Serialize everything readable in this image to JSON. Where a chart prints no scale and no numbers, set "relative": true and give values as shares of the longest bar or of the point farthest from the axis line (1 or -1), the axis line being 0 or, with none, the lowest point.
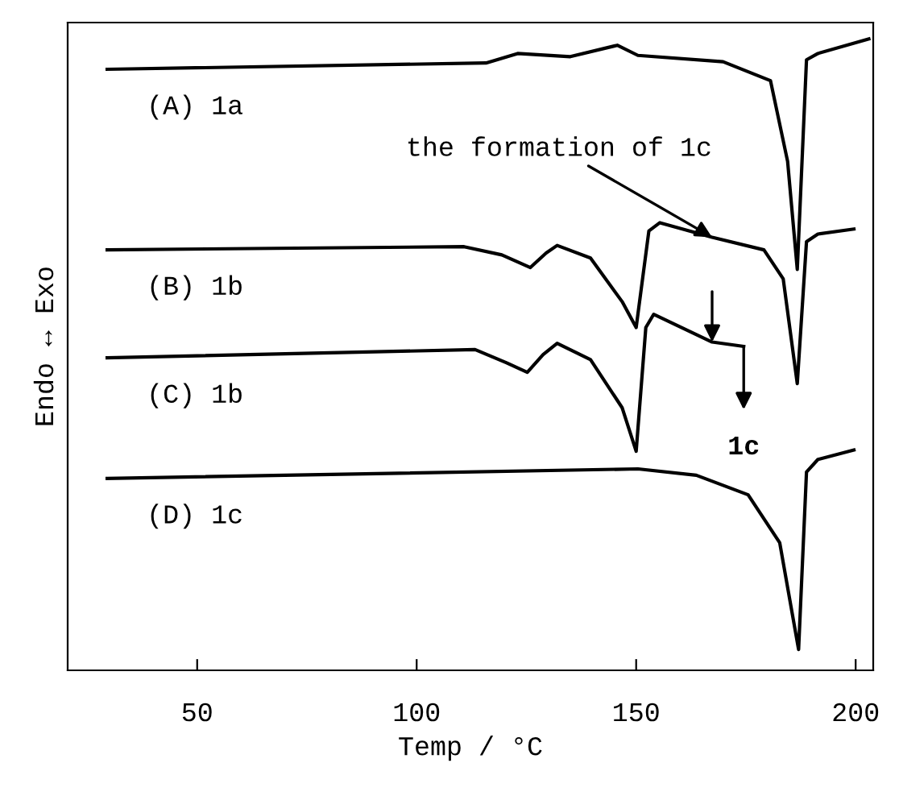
{
  "chart_data": {
    "type": "line",
    "relative": true,
    "xlabel": "Temp / °C",
    "ylabel": "Endo ↔ Exo",
    "xlim": [
      20.5,
      204
    ],
    "xticks": [
      50,
      100,
      150,
      200
    ],
    "grid": false,
    "legend": false,
    "marker": "none",
    "line_style": "solid",
    "series": [
      {
        "name": "(A) 1a",
        "color": "#000000",
        "x": [
          29.5,
          115.8,
          123,
          135,
          145.7,
          150.4,
          169.8,
          180.6,
          184.5,
          186.7,
          188.8,
          191.4,
          203
        ],
        "values": [
          0.952,
          0.962,
          0.977,
          0.972,
          0.99,
          0.974,
          0.964,
          0.934,
          0.806,
          0.635,
          0.967,
          0.977,
          1
        ]
      },
      {
        "name": "(B) 1b",
        "color": "#000000",
        "x": [
          29.5,
          110.8,
          119.4,
          125.9,
          129.5,
          132,
          139.6,
          146.8,
          150,
          152.9,
          155.4,
          167.3,
          179.1,
          183.5,
          186.7,
          188.8,
          191.4,
          199.6
        ],
        "values": [
          0.666,
          0.671,
          0.658,
          0.638,
          0.661,
          0.673,
          0.653,
          0.584,
          0.543,
          0.696,
          0.709,
          0.686,
          0.666,
          0.62,
          0.454,
          0.679,
          0.691,
          0.699
        ]
      },
      {
        "name": "(C) 1b",
        "color": "#000000",
        "x": [
          29.5,
          113.3,
          120.5,
          125.2,
          128.8,
          132,
          139.6,
          146.8,
          150,
          152.2,
          154,
          167.3,
          174.5
        ],
        "values": [
          0.495,
          0.508,
          0.487,
          0.472,
          0.5,
          0.518,
          0.492,
          0.416,
          0.347,
          0.543,
          0.564,
          0.52,
          0.513
        ]
      },
      {
        "name": "(D) 1c",
        "color": "#000000",
        "x": [
          29.5,
          150.4,
          163.7,
          175.5,
          182.7,
          187,
          188.8,
          191.4,
          199.6
        ],
        "values": [
          0.304,
          0.319,
          0.309,
          0.278,
          0.202,
          0.033,
          0.314,
          0.334,
          0.349
        ]
      }
    ],
    "annotations": [
      {
        "text": "the formation of 1c",
        "x": 167.3,
        "y": 0.686
      },
      {
        "text": "1c",
        "x": 174.5,
        "y": 0.513
      }
    ]
  }
}
